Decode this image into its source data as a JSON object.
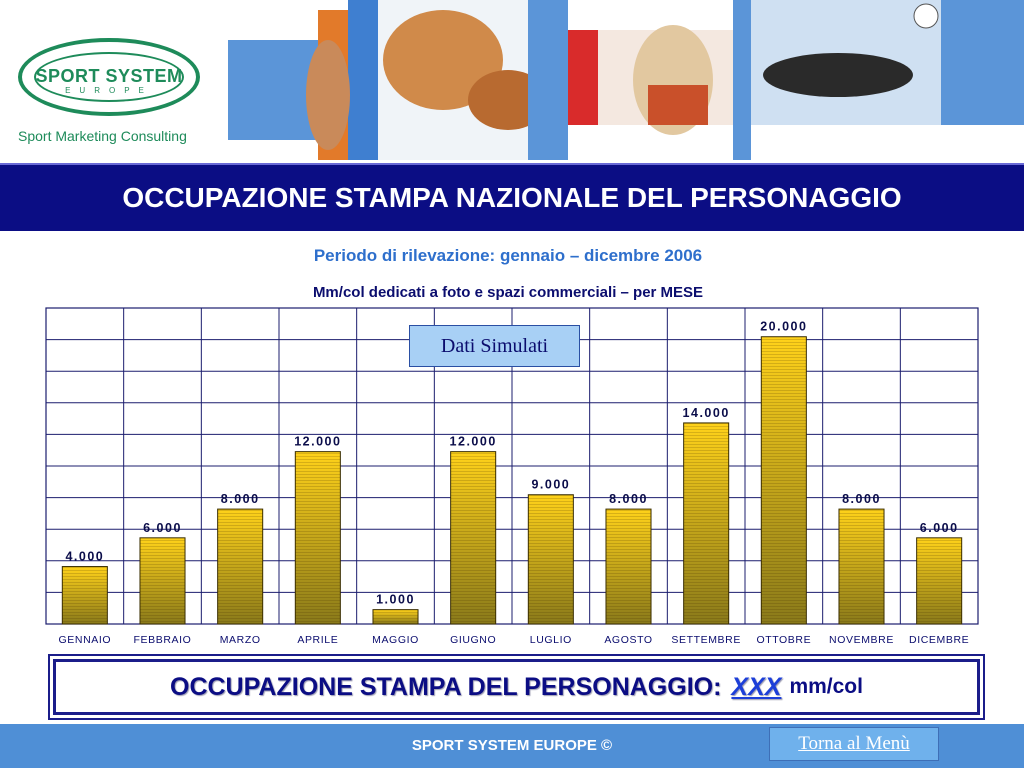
{
  "header": {
    "logo_name": "SPORT SYSTEM",
    "logo_sub": "EUROPE",
    "logo_tagline": "Sport Marketing Consulting"
  },
  "title": "OCCUPAZIONE STAMPA NAZIONALE DEL PERSONAGGIO",
  "subtitle": "Periodo di rilevazione: gennaio – dicembre 2006",
  "chart_note": "Dati Simulati",
  "chart_data": {
    "type": "bar",
    "title": "Mm/col dedicati a foto e spazi commerciali – per MESE",
    "xlabel": "",
    "ylabel": "",
    "categories": [
      "GENNAIO",
      "FEBBRAIO",
      "MARZO",
      "APRILE",
      "MAGGIO",
      "GIUGNO",
      "LUGLIO",
      "AGOSTO",
      "SETTEMBRE",
      "OTTOBRE",
      "NOVEMBRE",
      "DICEMBRE"
    ],
    "values": [
      4000,
      6000,
      8000,
      12000,
      1000,
      12000,
      9000,
      8000,
      14000,
      20000,
      8000,
      6000
    ],
    "data_labels": [
      "4.000",
      "6.000",
      "8.000",
      "12.000",
      "1.000",
      "12.000",
      "9.000",
      "8.000",
      "14.000",
      "20.000",
      "8.000",
      "6.000"
    ],
    "ylim": [
      0,
      22000
    ],
    "grid": true,
    "colors": {
      "bar_top": "#ffd21a",
      "bar_bottom": "#8a7a1a",
      "grid": "#1b1d6e"
    }
  },
  "summary": {
    "label": "OCCUPAZIONE STAMPA DEL PERSONAGGIO:",
    "value": "XXX",
    "unit": "mm/col"
  },
  "footer": {
    "text": "SPORT SYSTEM EUROPE ©",
    "menu_link": "Torna al Menù"
  },
  "colors": {
    "title_bar": "#0b0d84",
    "footer": "#4f8fd6",
    "brand_green": "#1e8b5a"
  }
}
